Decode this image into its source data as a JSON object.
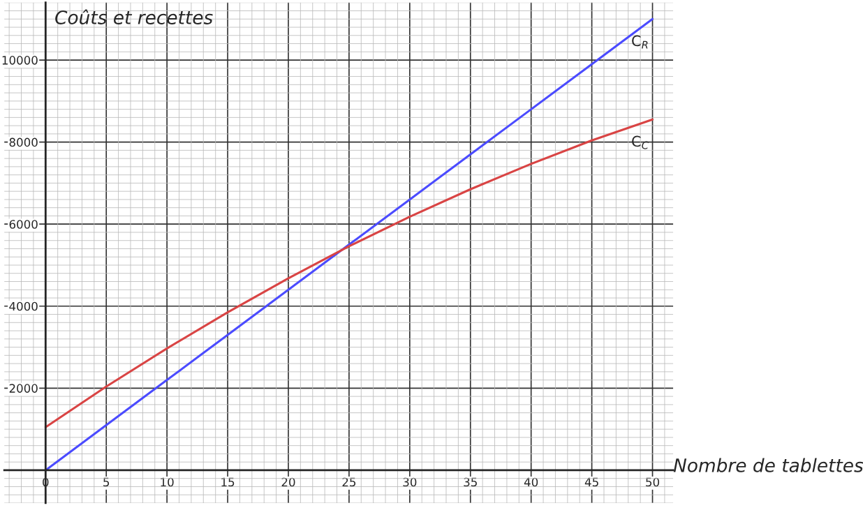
{
  "chart_data": {
    "type": "line",
    "xlabel": "Nombre de tablettes",
    "ylabel": "Coûts et recettes",
    "x": [
      0,
      5,
      10,
      15,
      20,
      25,
      30,
      35,
      40,
      45,
      50
    ],
    "series": [
      {
        "name": "C$_{R}$",
        "color": "#4b4bff",
        "values": [
          0,
          1100,
          2200,
          3300,
          4400,
          5500,
          6600,
          7700,
          8800,
          9900,
          11000
        ]
      },
      {
        "name": "C$_{C}$",
        "color": "#d94444",
        "values": [
          1050,
          2040,
          2970,
          3850,
          4680,
          5460,
          6180,
          6850,
          7470,
          8040,
          8550
        ]
      }
    ],
    "xlim": [
      -3.4,
      51.7
    ],
    "ylim": [
      -800,
      11400
    ],
    "xticks": [
      0,
      5,
      10,
      15,
      20,
      25,
      30,
      35,
      40,
      45,
      50
    ],
    "yticks": [
      2000,
      4000,
      6000,
      8000,
      10000
    ],
    "grid": true,
    "marker": "none",
    "line_style": "solid",
    "legend": false
  }
}
